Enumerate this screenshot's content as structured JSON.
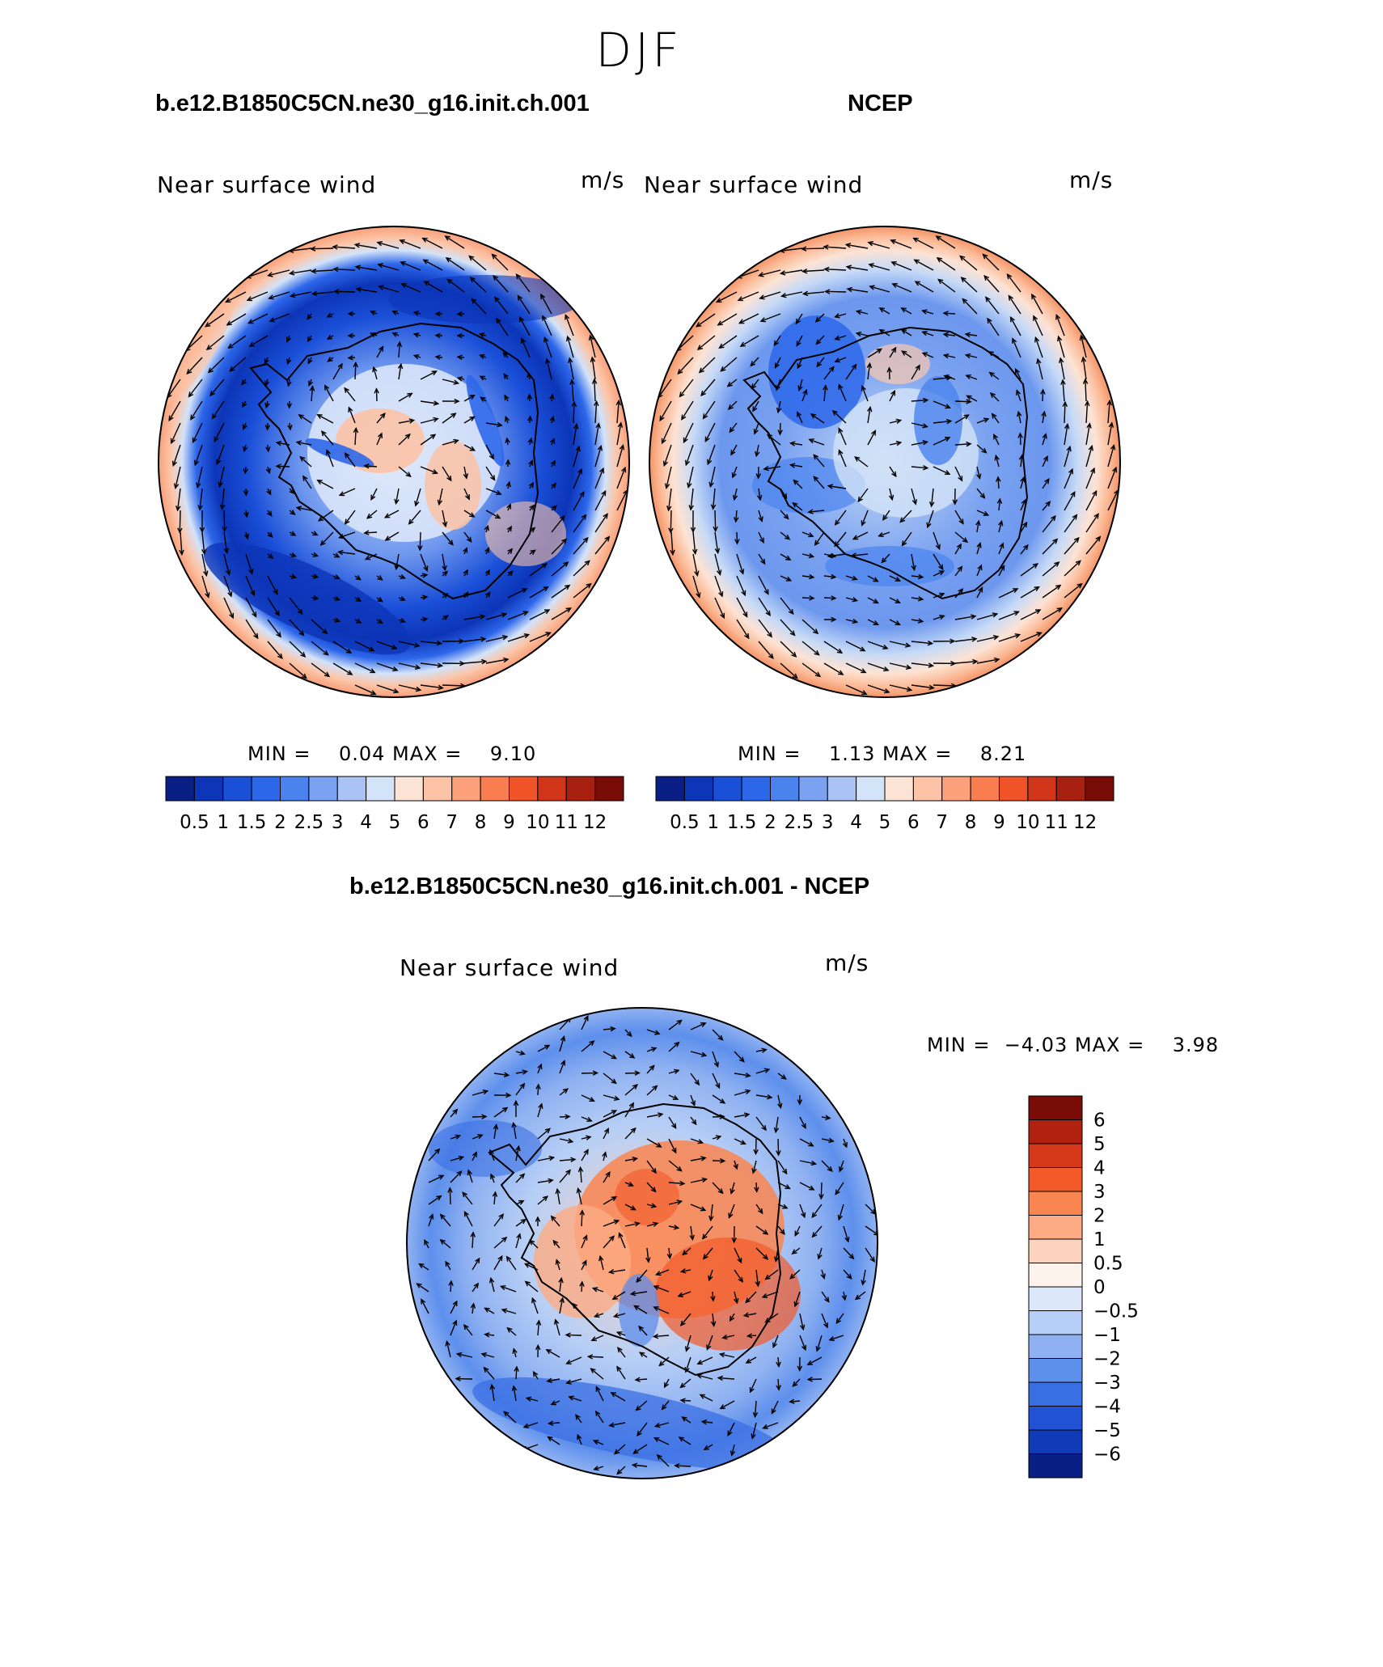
{
  "title": "DJF",
  "panels": [
    {
      "case_title": "b.e12.B1850C5CN.ne30_g16.init.ch.001",
      "variable": "Near surface wind",
      "units": "m/s",
      "stats": "MIN =    0.04 MAX =    9.10"
    },
    {
      "case_title": "NCEP",
      "variable": "Near surface wind",
      "units": "m/s",
      "stats": "MIN =    1.13 MAX =    8.21"
    },
    {
      "case_title": "b.e12.B1850C5CN.ne30_g16.init.ch.001 - NCEP",
      "variable": "Near surface wind",
      "units": "m/s",
      "stats": "MIN =  −4.03 MAX =    3.98"
    }
  ],
  "colorbar_abs": {
    "labels": [
      "0.5",
      "1",
      "1.5",
      "2",
      "2.5",
      "3",
      "4",
      "5",
      "6",
      "7",
      "8",
      "9",
      "10",
      "11",
      "12"
    ],
    "colors": [
      "#0a1f86",
      "#0c35b7",
      "#1a4fd8",
      "#2d67ea",
      "#4a83ee",
      "#7aa2f0",
      "#a9c3f4",
      "#d3e3f8",
      "#fbe3d6",
      "#fdc3a6",
      "#fca17c",
      "#f97d4f",
      "#ef5327",
      "#d2361a",
      "#a8200f",
      "#7a0c07"
    ]
  },
  "colorbar_diff": {
    "labels": [
      "6",
      "5",
      "4",
      "3",
      "2",
      "1",
      "0.5",
      "0",
      "−0.5",
      "−1",
      "−2",
      "−3",
      "−4",
      "−5",
      "−6"
    ],
    "colors": [
      "#7a0c07",
      "#b0220f",
      "#d7391b",
      "#f25a2a",
      "#f98550",
      "#fcab85",
      "#fdd3be",
      "#fdf3ec",
      "#dde9fb",
      "#b7cff6",
      "#8fb1f1",
      "#5d8fec",
      "#3a6fe3",
      "#2152d3",
      "#103bb6",
      "#0a1f86"
    ]
  },
  "chart_data": [
    {
      "type": "heatmap",
      "title": "b.e12.B1850C5CN.ne30_g16.init.ch.001",
      "variable": "Near surface wind",
      "units": "m/s",
      "projection": "south polar stereographic",
      "min": 0.04,
      "max": 9.1,
      "contour_levels": [
        0.5,
        1,
        1.5,
        2,
        2.5,
        3,
        4,
        5,
        6,
        7,
        8,
        9,
        10,
        11,
        12
      ],
      "overlay": "wind vectors"
    },
    {
      "type": "heatmap",
      "title": "NCEP",
      "variable": "Near surface wind",
      "units": "m/s",
      "projection": "south polar stereographic",
      "min": 1.13,
      "max": 8.21,
      "contour_levels": [
        0.5,
        1,
        1.5,
        2,
        2.5,
        3,
        4,
        5,
        6,
        7,
        8,
        9,
        10,
        11,
        12
      ],
      "overlay": "wind vectors"
    },
    {
      "type": "heatmap",
      "title": "b.e12.B1850C5CN.ne30_g16.init.ch.001 - NCEP",
      "variable": "Near surface wind",
      "units": "m/s",
      "projection": "south polar stereographic",
      "min": -4.03,
      "max": 3.98,
      "contour_levels": [
        -6,
        -5,
        -4,
        -3,
        -2,
        -1,
        -0.5,
        0,
        0.5,
        1,
        2,
        3,
        4,
        5,
        6
      ],
      "overlay": "wind vectors"
    }
  ]
}
